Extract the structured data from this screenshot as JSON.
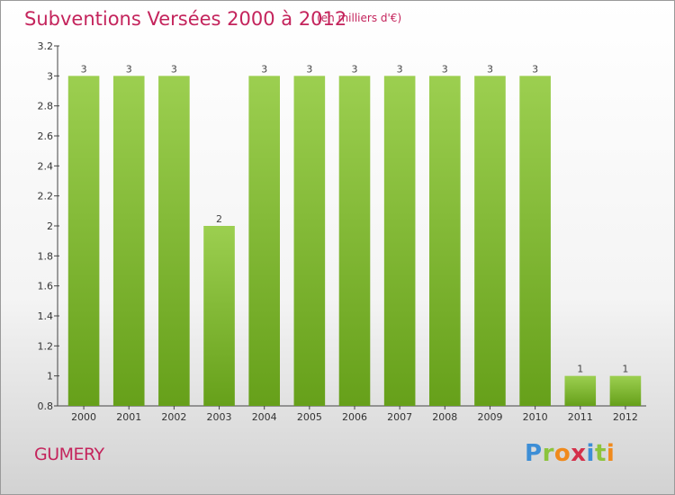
{
  "title": "Subventions Versées 2000 à 2012",
  "subtitle": "(en milliers d'€)",
  "commune": "GUMERY",
  "logo": {
    "letters": [
      "P",
      "r",
      "o",
      "x",
      "i",
      "t",
      "i"
    ],
    "colors": [
      "#3d8ed6",
      "#8cc43c",
      "#f08a1c",
      "#d4304a",
      "#3d8ed6",
      "#8cc43c",
      "#f08a1c"
    ]
  },
  "chart_data": {
    "type": "bar",
    "title": "Subventions Versées 2000 à 2012",
    "subtitle": "(en milliers d'€)",
    "categories": [
      "2000",
      "2001",
      "2002",
      "2003",
      "2004",
      "2005",
      "2006",
      "2007",
      "2008",
      "2009",
      "2010",
      "2011",
      "2012"
    ],
    "values": [
      3,
      3,
      3,
      2,
      3,
      3,
      3,
      3,
      3,
      3,
      3,
      1,
      1
    ],
    "ylim": [
      0.8,
      3.2
    ],
    "yticks": [
      "0.8",
      "1",
      "1.2",
      "1.4",
      "1.6",
      "1.8",
      "2",
      "2.2",
      "2.4",
      "2.6",
      "2.8",
      "3",
      "3.2"
    ],
    "bar_color_top": "#9ccf50",
    "bar_color_bottom": "#66a01a",
    "label_color": "#444444",
    "grid": false
  }
}
